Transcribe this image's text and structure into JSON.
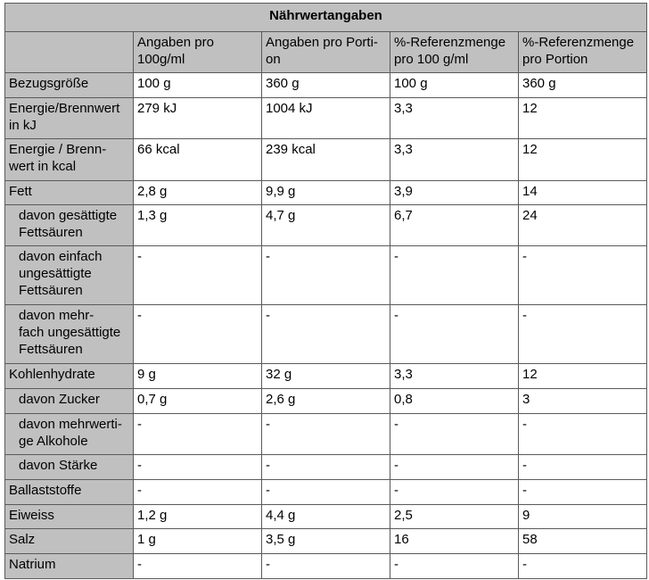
{
  "table": {
    "title": "Nährwertangaben",
    "columns": [
      "Angaben pro 100g/ml",
      "Angaben pro Porti-\non",
      "%-Referenzmenge pro 100 g/ml",
      "%-Referenzmenge pro Portion"
    ],
    "rows": [
      {
        "label": "Bezugsgröße",
        "cells": [
          "100 g",
          "360 g",
          "100 g",
          "360 g"
        ]
      },
      {
        "label": "Energie/Brennwert in kJ",
        "cells": [
          "279 kJ",
          "1004 kJ",
          "3,3",
          "12"
        ]
      },
      {
        "label": "Energie / Brenn-\nwert in kcal",
        "cells": [
          "66 kcal",
          "239 kcal",
          "3,3",
          "12"
        ]
      },
      {
        "label": "Fett",
        "cells": [
          "2,8 g",
          "9,9 g",
          "3,9",
          "14"
        ]
      },
      {
        "label": "davon gesättigte Fettsäuren",
        "indent": true,
        "cells": [
          "1,3 g",
          "4,7 g",
          "6,7",
          "24"
        ]
      },
      {
        "label": "davon einfach ungesättigte Fettsäuren",
        "indent": true,
        "cells": [
          "-",
          "-",
          "-",
          "-"
        ]
      },
      {
        "label": "davon mehr-\nfach ungesättigte Fettsäuren",
        "indent": true,
        "cells": [
          "-",
          "-",
          "-",
          "-"
        ]
      },
      {
        "label": "Kohlenhydrate",
        "cells": [
          "9 g",
          "32 g",
          "3,3",
          "12"
        ]
      },
      {
        "label": "davon Zucker",
        "indent": true,
        "cells": [
          "0,7 g",
          "2,6 g",
          "0,8",
          "3"
        ]
      },
      {
        "label": "davon mehrwerti-\nge Alkohole",
        "indent": true,
        "cells": [
          "-",
          "-",
          "-",
          "-"
        ]
      },
      {
        "label": "davon Stärke",
        "indent": true,
        "cells": [
          "-",
          "-",
          "-",
          "-"
        ]
      },
      {
        "label": "Ballaststoffe",
        "cells": [
          "-",
          "-",
          "-",
          "-"
        ]
      },
      {
        "label": "Eiweiss",
        "cells": [
          "1,2 g",
          "4,4 g",
          "2,5",
          "9"
        ]
      },
      {
        "label": "Salz",
        "cells": [
          "1 g",
          "3,5 g",
          "16",
          "58"
        ]
      },
      {
        "label": "Natrium",
        "cells": [
          "-",
          "-",
          "-",
          "-"
        ]
      }
    ]
  }
}
